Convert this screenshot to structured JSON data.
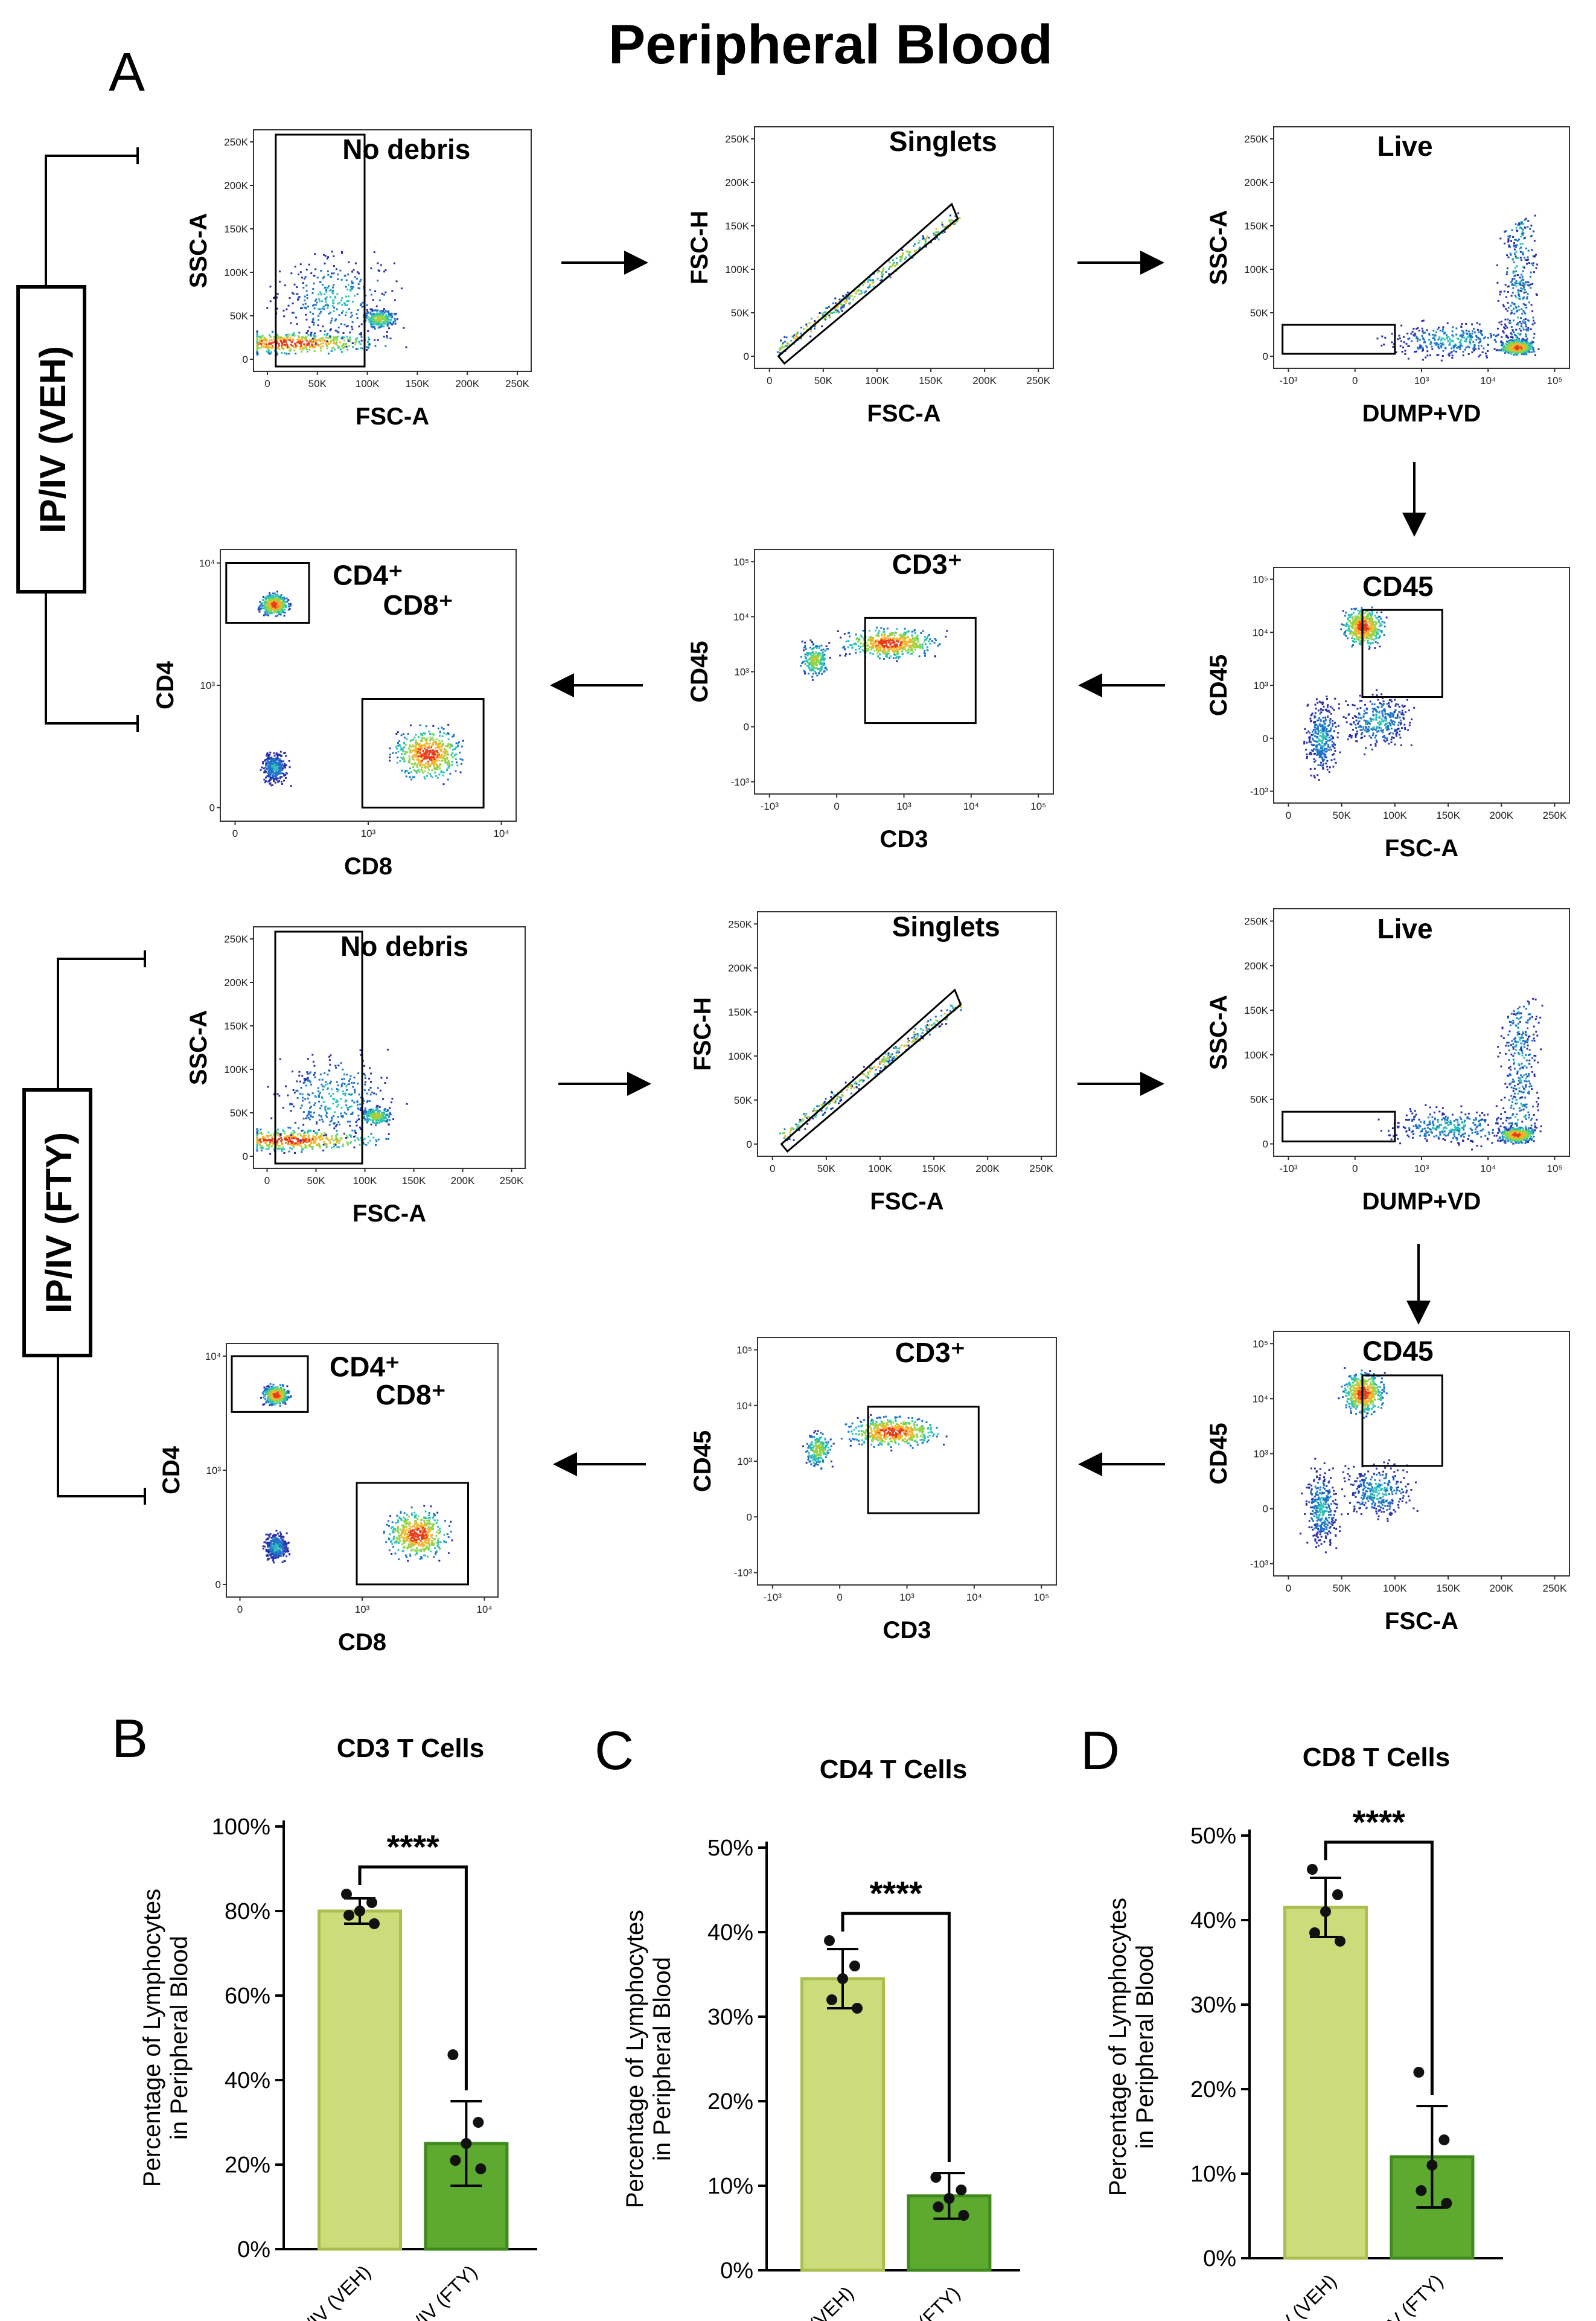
{
  "figure": {
    "title": "Peripheral Blood",
    "panel_labels": {
      "A": "A",
      "B": "B",
      "C": "C",
      "D": "D"
    },
    "group_labels": {
      "veh": "IP/IV (VEH)",
      "fty": "IP/IV (FTY)"
    },
    "colors": {
      "veh_bar": "#cddc7a",
      "fty_bar": "#5ea92f",
      "veh_edge": "#a9bf4f",
      "fty_edge": "#3f8a1c",
      "gate": "#000000"
    }
  },
  "flow_panels": {
    "veh": [
      {
        "id": "veh-nodebris",
        "gate": "No debris",
        "xlabel": "FSC-A",
        "ylabel": "SSC-A",
        "xticks": [
          "0",
          "50K",
          "100K",
          "150K",
          "200K",
          "250K"
        ],
        "yticks": [
          "0",
          "50K",
          "100K",
          "150K",
          "200K",
          "250K"
        ]
      },
      {
        "id": "veh-singlets",
        "gate": "Singlets",
        "xlabel": "FSC-A",
        "ylabel": "FSC-H",
        "xticks": [
          "0",
          "50K",
          "100K",
          "150K",
          "200K",
          "250K"
        ],
        "yticks": [
          "0",
          "50K",
          "100K",
          "150K",
          "200K",
          "250K"
        ]
      },
      {
        "id": "veh-live",
        "gate": "Live",
        "xlabel": "DUMP+VD",
        "ylabel": "SSC-A",
        "xticks": [
          "-10³",
          "0",
          "10³",
          "10⁴",
          "10⁵"
        ],
        "yticks": [
          "0",
          "50K",
          "100K",
          "150K",
          "200K",
          "250K"
        ]
      },
      {
        "id": "veh-cd45",
        "gate": "CD45",
        "xlabel": "FSC-A",
        "ylabel": "CD45",
        "xticks": [
          "0",
          "50K",
          "100K",
          "150K",
          "200K",
          "250K"
        ],
        "yticks": [
          "-10³",
          "0",
          "10³",
          "10⁴",
          "10⁵"
        ]
      },
      {
        "id": "veh-cd3",
        "gate": "CD3⁺",
        "xlabel": "CD3",
        "ylabel": "CD45",
        "xticks": [
          "-10³",
          "0",
          "10³",
          "10⁴",
          "10⁵"
        ],
        "yticks": [
          "-10³",
          "0",
          "10³",
          "10⁴",
          "10⁵"
        ]
      },
      {
        "id": "veh-cd4cd8",
        "gate": "CD4⁺",
        "gate2": "CD8⁺",
        "xlabel": "CD8",
        "ylabel": "CD4",
        "xticks": [
          "0",
          "10³",
          "10⁴"
        ],
        "yticks": [
          "0",
          "10³",
          "10⁴"
        ]
      }
    ],
    "fty": [
      {
        "id": "fty-nodebris",
        "gate": "No debris",
        "xlabel": "FSC-A",
        "ylabel": "SSC-A",
        "xticks": [
          "0",
          "50K",
          "100K",
          "150K",
          "200K",
          "250K"
        ],
        "yticks": [
          "0",
          "50K",
          "100K",
          "150K",
          "200K",
          "250K"
        ]
      },
      {
        "id": "fty-singlets",
        "gate": "Singlets",
        "xlabel": "FSC-A",
        "ylabel": "FSC-H",
        "xticks": [
          "0",
          "50K",
          "100K",
          "150K",
          "200K",
          "250K"
        ],
        "yticks": [
          "0",
          "50K",
          "100K",
          "150K",
          "200K",
          "250K"
        ]
      },
      {
        "id": "fty-live",
        "gate": "Live",
        "xlabel": "DUMP+VD",
        "ylabel": "SSC-A",
        "xticks": [
          "-10³",
          "0",
          "10³",
          "10⁴",
          "10⁵"
        ],
        "yticks": [
          "0",
          "50K",
          "100K",
          "150K",
          "200K",
          "250K"
        ]
      },
      {
        "id": "fty-cd45",
        "gate": "CD45",
        "xlabel": "FSC-A",
        "ylabel": "CD45",
        "xticks": [
          "0",
          "50K",
          "100K",
          "150K",
          "200K",
          "250K"
        ],
        "yticks": [
          "-10³",
          "0",
          "10³",
          "10⁴",
          "10⁵"
        ]
      },
      {
        "id": "fty-cd3",
        "gate": "CD3⁺",
        "xlabel": "CD3",
        "ylabel": "CD45",
        "xticks": [
          "-10³",
          "0",
          "10³",
          "10⁴",
          "10⁵"
        ],
        "yticks": [
          "-10³",
          "0",
          "10³",
          "10⁴",
          "10⁵"
        ]
      },
      {
        "id": "fty-cd4cd8",
        "gate": "CD4⁺",
        "gate2": "CD8⁺",
        "xlabel": "CD8",
        "ylabel": "CD4",
        "xticks": [
          "0",
          "10³",
          "10⁴"
        ],
        "yticks": [
          "0",
          "10³",
          "10⁴"
        ]
      }
    ]
  },
  "chart_data": [
    {
      "type": "bar",
      "panel": "B",
      "title": "CD3 T Cells",
      "ylabel": "Percentage of Lymphocytes in Peripheral Blood",
      "ylabel_lines": [
        "Percentage of Lymphocytes",
        "in Peripheral Blood"
      ],
      "categories": [
        "IP/IV (VEH)",
        "IP/IV (FTY)"
      ],
      "values": [
        80,
        25
      ],
      "errors": [
        3,
        10
      ],
      "points": [
        [
          84,
          82,
          80,
          79,
          77
        ],
        [
          46,
          30,
          25,
          21,
          19
        ]
      ],
      "ylim": [
        0,
        100
      ],
      "yticks": [
        "0%",
        "20%",
        "40%",
        "60%",
        "80%",
        "100%"
      ],
      "ytick_values": [
        0,
        20,
        40,
        60,
        80,
        100
      ],
      "significance": "****"
    },
    {
      "type": "bar",
      "panel": "C",
      "title": "CD4 T Cells",
      "ylabel": "Percentage of Lymphocytes in Peripheral Blood",
      "ylabel_lines": [
        "Percentage of Lymphocytes",
        "in Peripheral Blood"
      ],
      "categories": [
        "IP/IV (VEH)",
        "IP/IV (FTY)"
      ],
      "values": [
        34.5,
        8.8
      ],
      "errors": [
        3.5,
        2.7
      ],
      "points": [
        [
          39,
          36,
          34.5,
          32,
          31
        ],
        [
          11,
          9.5,
          8.5,
          7.5,
          6.5
        ]
      ],
      "ylim": [
        0,
        50
      ],
      "yticks": [
        "0%",
        "10%",
        "20%",
        "30%",
        "40%",
        "50%"
      ],
      "ytick_values": [
        0,
        10,
        20,
        30,
        40,
        50
      ],
      "significance": "****"
    },
    {
      "type": "bar",
      "panel": "D",
      "title": "CD8 T Cells",
      "ylabel": "Percentage of Lymphocytes in Peripheral Blood",
      "ylabel_lines": [
        "Percentage of Lymphocytes",
        "in Peripheral Blood"
      ],
      "categories": [
        "IP/IV (VEH)",
        "IP/IV (FTY)"
      ],
      "values": [
        41.5,
        12
      ],
      "errors": [
        3.5,
        6
      ],
      "points": [
        [
          46,
          43,
          41,
          38.5,
          37.5
        ],
        [
          22,
          14,
          11,
          8,
          6.5
        ]
      ],
      "ylim": [
        0,
        50
      ],
      "yticks": [
        "0%",
        "10%",
        "20%",
        "30%",
        "40%",
        "50%"
      ],
      "ytick_values": [
        0,
        10,
        20,
        30,
        40,
        50
      ],
      "significance": "****"
    }
  ]
}
